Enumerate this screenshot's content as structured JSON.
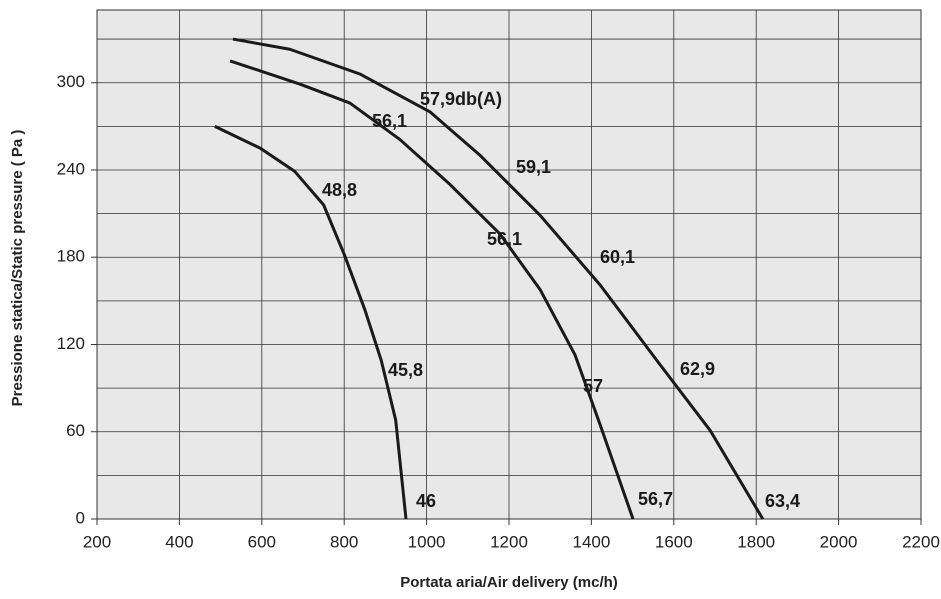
{
  "chart_data": {
    "type": "line",
    "xlabel": "Portata aria/Air delivery (mc/h)",
    "ylabel": "Pressione statica/Static pressure ( Pa )",
    "xlim": [
      200,
      2200
    ],
    "xticks": [
      200,
      400,
      600,
      800,
      1000,
      1200,
      1400,
      1600,
      1800,
      2000,
      2200
    ],
    "ylim": [
      0,
      350
    ],
    "yticks": [
      0,
      60,
      120,
      180,
      240,
      300
    ],
    "yminor_grid": [
      30,
      90,
      150,
      210,
      270,
      330
    ],
    "grid": true,
    "background": "#e8e8e8",
    "series": [
      {
        "color": "#1a1a1a",
        "x": [
          486,
          596,
          680,
          750,
          800,
          850,
          890,
          925,
          950
        ],
        "values": [
          270,
          255,
          239,
          216,
          182,
          144,
          109,
          68,
          0
        ]
      },
      {
        "color": "#1a1a1a",
        "x": [
          523,
          693,
          814,
          935,
          1057,
          1178,
          1275,
          1360,
          1421,
          1501
        ],
        "values": [
          315,
          299,
          286,
          261,
          230,
          196,
          158,
          113,
          65,
          0
        ]
      },
      {
        "color": "#1a1a1a",
        "x": [
          530,
          668,
          838,
          1008,
          1130,
          1275,
          1421,
          1567,
          1688,
          1816
        ],
        "values": [
          330,
          323,
          306,
          280,
          250,
          209,
          161,
          106,
          61,
          0
        ]
      }
    ],
    "annotations": [
      "57,9db(A)",
      "56,1",
      "59,1",
      "48,8",
      "56,1",
      "60,1",
      "45,8",
      "57",
      "62,9",
      "46",
      "56,7",
      "63,4"
    ]
  }
}
